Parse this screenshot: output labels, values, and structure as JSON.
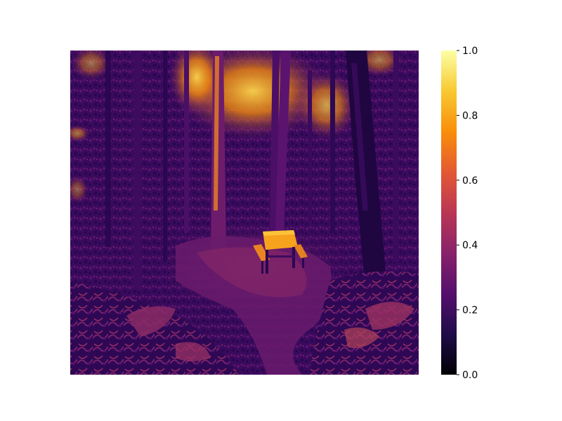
{
  "figure": {
    "image_description_name": "thermal-style forest clearing with picnic table",
    "colormap": "inferno",
    "colorbar": {
      "min": 0.0,
      "max": 1.0,
      "tick_labels": [
        "0.0",
        "0.2",
        "0.4",
        "0.6",
        "0.8",
        "1.0"
      ],
      "tick_values": [
        0.0,
        0.2,
        0.4,
        0.6,
        0.8,
        1.0
      ]
    },
    "colors": {
      "background": "#ffffff",
      "stop_0": "#000004",
      "stop_1": "#1f0c48",
      "stop_2": "#550f6d",
      "stop_3": "#88226a",
      "stop_4": "#ba3655",
      "stop_5": "#e35933",
      "stop_6": "#f98e09",
      "stop_7": "#f8c932",
      "stop_8": "#fcffa4"
    }
  }
}
